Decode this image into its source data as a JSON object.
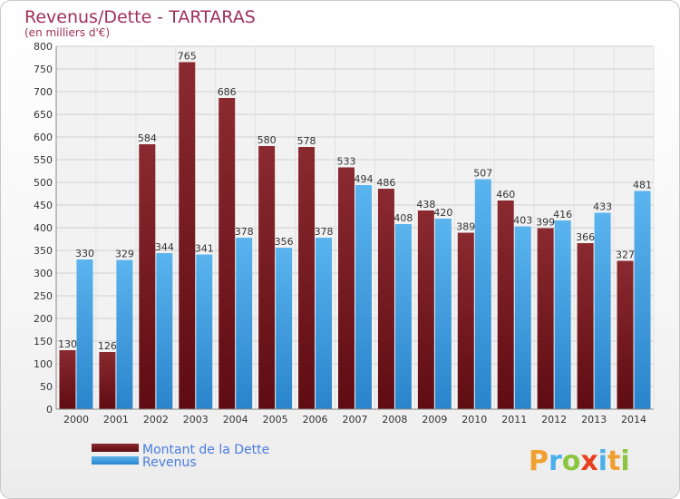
{
  "chart_data": {
    "type": "bar",
    "title": "Revenus/Dette - TARTARAS",
    "subtitle": "(en milliers d'€)",
    "categories": [
      "2000",
      "2001",
      "2002",
      "2003",
      "2004",
      "2005",
      "2006",
      "2007",
      "2008",
      "2009",
      "2010",
      "2011",
      "2012",
      "2013",
      "2014"
    ],
    "series": [
      {
        "name": "Montant de la Dette",
        "values": [
          130,
          126,
          584,
          765,
          686,
          580,
          578,
          533,
          486,
          438,
          389,
          460,
          399,
          366,
          327
        ],
        "color": "#7a1a22"
      },
      {
        "name": "Revenus",
        "values": [
          330,
          329,
          344,
          341,
          378,
          356,
          378,
          494,
          408,
          420,
          507,
          403,
          416,
          433,
          481
        ],
        "color": "#3f9fe2"
      }
    ],
    "ylim": [
      0,
      800
    ],
    "yticks": [
      0,
      50,
      100,
      150,
      200,
      250,
      300,
      350,
      400,
      450,
      500,
      550,
      600,
      650,
      700,
      750,
      800
    ],
    "grid": true,
    "legend_position": "bottom-left"
  },
  "logo": {
    "text": "Proxiti",
    "letters": [
      {
        "char": "P",
        "color": "#f0a030"
      },
      {
        "char": "r",
        "color": "#4ab0e8"
      },
      {
        "char": "o",
        "color": "#8cc63f"
      },
      {
        "char": "x",
        "color": "#e8401c"
      },
      {
        "char": "i",
        "color": "#4ab0e8"
      },
      {
        "char": "t",
        "color": "#f0a030"
      },
      {
        "char": "i",
        "color": "#8cc63f"
      }
    ]
  }
}
